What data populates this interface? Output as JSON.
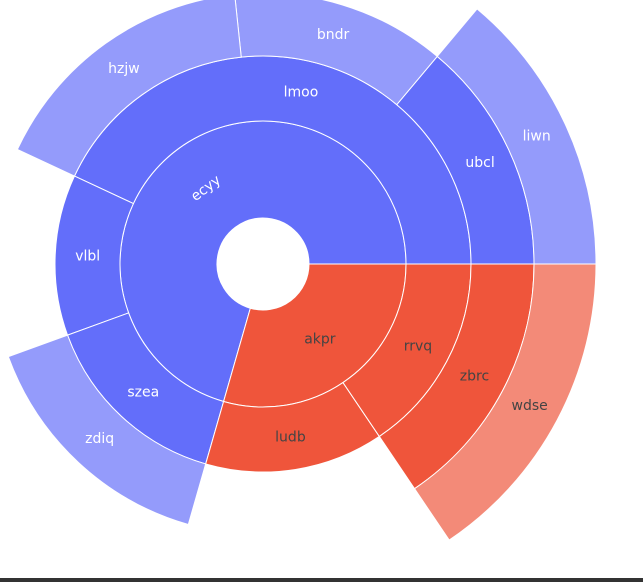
{
  "chart_data": {
    "type": "sunburst",
    "title": "",
    "colors": {
      "blue_dark": "#636efa",
      "blue_light": "#949bfb",
      "red_dark": "#ef553b",
      "red_light": "#f38a78",
      "label_light": "#ffffff",
      "label_dark": "#444444"
    },
    "nodes": [
      {
        "id": "ecyy",
        "label": "ecyy",
        "parent": "",
        "level": 1,
        "start_deg": 0,
        "end_deg": 254,
        "group": "blue"
      },
      {
        "id": "akpr",
        "label": "akpr",
        "parent": "",
        "level": 1,
        "start_deg": 254,
        "end_deg": 360,
        "group": "red"
      },
      {
        "id": "lmoo",
        "label": "lmoo",
        "parent": "ecyy",
        "level": 2,
        "start_deg": 0,
        "end_deg": 155,
        "group": "blue"
      },
      {
        "id": "vlbl",
        "label": "vlbl",
        "parent": "ecyy",
        "level": 2,
        "start_deg": 155,
        "end_deg": 200,
        "group": "blue"
      },
      {
        "id": "szea",
        "label": "szea",
        "parent": "ecyy",
        "level": 2,
        "start_deg": 200,
        "end_deg": 254,
        "group": "blue"
      },
      {
        "id": "ludb",
        "label": "ludb",
        "parent": "akpr",
        "level": 2,
        "start_deg": 0,
        "end_deg": 50,
        "group": "red"
      },
      {
        "id": "rrvq",
        "label": "rrvq",
        "parent": "akpr",
        "level": 2,
        "start_deg": 50,
        "end_deg": 106,
        "group": "red"
      },
      {
        "id": "ubcl",
        "label": "ubcl",
        "parent": "lmoo",
        "level": 3,
        "start_deg": 0,
        "end_deg": 50,
        "group": "blue"
      },
      {
        "id": "bndr",
        "label": "bndr",
        "parent": "lmoo",
        "level": 3,
        "start_deg": 50,
        "end_deg": 96,
        "group": "blue"
      },
      {
        "id": "hzjw",
        "label": "hzjw",
        "parent": "lmoo",
        "level": 3,
        "start_deg": 96,
        "end_deg": 155,
        "group": "blue"
      },
      {
        "id": "zdiq",
        "label": "zdiq",
        "parent": "szea",
        "level": 3,
        "start_deg": 0,
        "end_deg": 54,
        "group": "blue"
      },
      {
        "id": "zbrc",
        "label": "zbrc",
        "parent": "rrvq",
        "level": 3,
        "start_deg": 0,
        "end_deg": 56,
        "group": "red"
      },
      {
        "id": "liwn",
        "label": "liwn",
        "parent": "ubcl",
        "level": 4,
        "start_deg": 0,
        "end_deg": 50,
        "group": "blue"
      },
      {
        "id": "wdse",
        "label": "wdse",
        "parent": "zbrc",
        "level": 4,
        "start_deg": 0,
        "end_deg": 56,
        "group": "red"
      }
    ]
  }
}
